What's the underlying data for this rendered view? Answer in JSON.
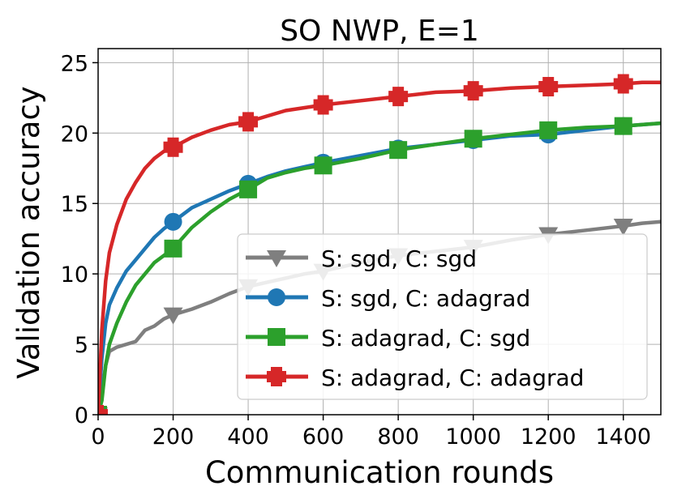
{
  "chart_data": {
    "type": "line",
    "title": "SO NWP, E=1",
    "xlabel": "Communication rounds",
    "ylabel": "Validation accuracy",
    "xlim": [
      0,
      1500
    ],
    "ylim": [
      0,
      26
    ],
    "xticks": [
      0,
      200,
      400,
      600,
      800,
      1000,
      1200,
      1400
    ],
    "yticks": [
      0,
      5,
      10,
      15,
      20,
      25
    ],
    "grid": true,
    "legend_position": "lower-right",
    "series": [
      {
        "name": "S: sgd, C: sgd",
        "color": "#7f7f7f",
        "marker": "triangle-down",
        "marker_x": [
          0,
          200,
          400,
          600,
          800,
          1000,
          1200,
          1400
        ],
        "x": [
          0,
          10,
          20,
          30,
          50,
          75,
          100,
          125,
          150,
          175,
          200,
          250,
          300,
          350,
          400,
          450,
          500,
          550,
          600,
          700,
          800,
          900,
          1000,
          1100,
          1200,
          1300,
          1400,
          1450,
          1500
        ],
        "y": [
          0,
          1.5,
          3.5,
          4.5,
          4.8,
          5.0,
          5.2,
          6.0,
          6.3,
          6.8,
          7.1,
          7.5,
          8.0,
          8.6,
          9.1,
          9.4,
          9.7,
          10.0,
          10.2,
          10.8,
          11.3,
          11.6,
          11.9,
          12.4,
          12.8,
          13.1,
          13.4,
          13.6,
          13.7
        ]
      },
      {
        "name": "S: sgd, C: adagrad",
        "color": "#1f77b4",
        "marker": "circle",
        "marker_x": [
          0,
          200,
          400,
          600,
          800,
          1000,
          1200,
          1400
        ],
        "x": [
          0,
          10,
          20,
          30,
          50,
          75,
          100,
          125,
          150,
          175,
          200,
          250,
          300,
          350,
          400,
          450,
          500,
          550,
          600,
          700,
          800,
          900,
          1000,
          1100,
          1200,
          1300,
          1400,
          1450,
          1500
        ],
        "y": [
          0,
          4.0,
          6.5,
          7.8,
          9.0,
          10.2,
          11.0,
          11.8,
          12.6,
          13.2,
          13.7,
          14.7,
          15.3,
          15.9,
          16.4,
          16.9,
          17.3,
          17.6,
          17.9,
          18.4,
          18.9,
          19.2,
          19.5,
          19.8,
          19.9,
          20.2,
          20.5,
          20.6,
          20.7
        ]
      },
      {
        "name": "S: adagrad, C: sgd",
        "color": "#2ca02c",
        "marker": "square",
        "marker_x": [
          0,
          200,
          400,
          600,
          800,
          1000,
          1200,
          1400
        ],
        "x": [
          0,
          10,
          20,
          30,
          50,
          75,
          100,
          125,
          150,
          175,
          200,
          250,
          300,
          350,
          400,
          450,
          500,
          550,
          600,
          700,
          800,
          900,
          1000,
          1100,
          1200,
          1300,
          1400,
          1450,
          1500
        ],
        "y": [
          0,
          1.0,
          3.5,
          5.0,
          6.5,
          8.0,
          9.2,
          10.0,
          10.8,
          11.3,
          11.8,
          13.3,
          14.4,
          15.3,
          16.0,
          16.8,
          17.2,
          17.5,
          17.7,
          18.2,
          18.8,
          19.2,
          19.6,
          19.9,
          20.2,
          20.4,
          20.5,
          20.6,
          20.7
        ]
      },
      {
        "name": "S: adagrad, C: adagrad",
        "color": "#d62728",
        "marker": "plus",
        "marker_x": [
          0,
          200,
          400,
          600,
          800,
          1000,
          1200,
          1400
        ],
        "x": [
          0,
          10,
          20,
          30,
          50,
          75,
          100,
          125,
          150,
          175,
          200,
          250,
          300,
          350,
          400,
          450,
          500,
          550,
          600,
          700,
          800,
          900,
          1000,
          1100,
          1200,
          1300,
          1400,
          1450,
          1500
        ],
        "y": [
          0,
          6.0,
          9.5,
          11.5,
          13.5,
          15.3,
          16.5,
          17.5,
          18.2,
          18.7,
          19.0,
          19.7,
          20.2,
          20.6,
          20.8,
          21.2,
          21.6,
          21.8,
          22.0,
          22.3,
          22.6,
          22.9,
          23.0,
          23.2,
          23.3,
          23.4,
          23.5,
          23.6,
          23.6
        ]
      }
    ]
  }
}
